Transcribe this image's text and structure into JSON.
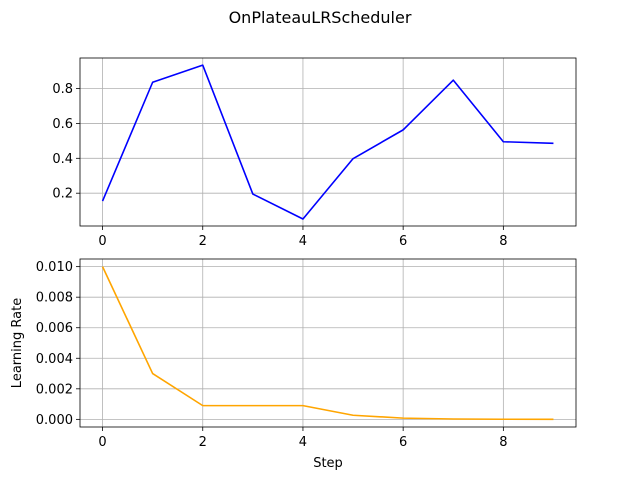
{
  "figure": {
    "suptitle": "OnPlateauLRScheduler"
  },
  "chart_data": [
    {
      "type": "line",
      "title": "",
      "xlabel": "",
      "ylabel": "",
      "x": [
        0,
        1,
        2,
        3,
        4,
        5,
        6,
        7,
        8,
        9
      ],
      "series": [
        {
          "color": "#0000ff",
          "values": [
            0.155,
            0.836,
            0.934,
            0.195,
            0.052,
            0.398,
            0.563,
            0.848,
            0.495,
            0.486
          ]
        }
      ],
      "xlim": [
        -0.45,
        9.45
      ],
      "ylim": [
        0.012,
        0.975
      ],
      "xticks": [
        0,
        2,
        4,
        6,
        8
      ],
      "xtick_labels": [
        "0",
        "2",
        "4",
        "6",
        "8"
      ],
      "yticks": [
        0.2,
        0.4,
        0.6,
        0.8
      ],
      "ytick_labels": [
        "0.2",
        "0.4",
        "0.6",
        "0.8"
      ],
      "grid": true
    },
    {
      "type": "line",
      "title": "",
      "xlabel": "Step",
      "ylabel": "Learning Rate",
      "x": [
        0,
        1,
        2,
        3,
        4,
        5,
        6,
        7,
        8,
        9
      ],
      "series": [
        {
          "color": "#ffa500",
          "values": [
            0.01,
            0.003,
            0.0009,
            0.0009,
            0.0009,
            0.00027,
            8.1e-05,
            2.43e-05,
            7.3e-06,
            2.2e-06
          ]
        }
      ],
      "xlim": [
        -0.45,
        9.45
      ],
      "ylim": [
        -0.0005,
        0.0105
      ],
      "xticks": [
        0,
        2,
        4,
        6,
        8
      ],
      "xtick_labels": [
        "0",
        "2",
        "4",
        "6",
        "8"
      ],
      "yticks": [
        0.0,
        0.002,
        0.004,
        0.006,
        0.008,
        0.01
      ],
      "ytick_labels": [
        "0.000",
        "0.002",
        "0.004",
        "0.006",
        "0.008",
        "0.010"
      ],
      "grid": true
    }
  ]
}
